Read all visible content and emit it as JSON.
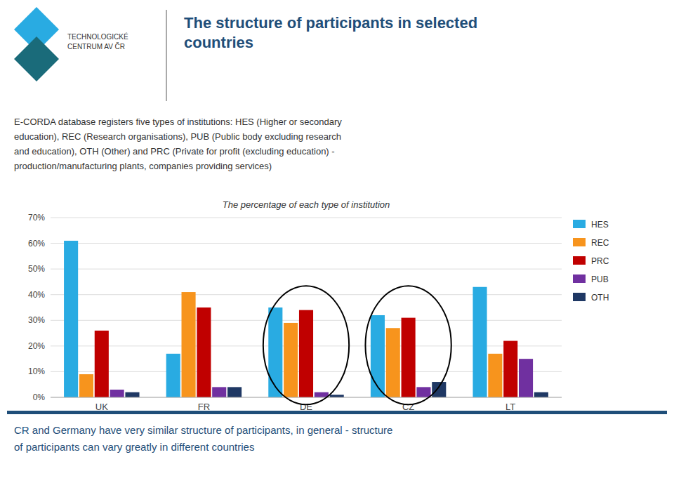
{
  "chart_data": {
    "type": "bar",
    "title": "The structure of participants in selected\ncountries",
    "subtitle": "The percentage of each type of institution",
    "annotations": [
      "TECHNOLOGICKÉ\nCENTRUM AV ČR",
      "E-CORDA database registers five types of institutions: HES (Higher or secondary\neducation), REC (Research organisations), PUB (Public body excluding research\nand education), OTH (Other) and PRC (Private for profit (excluding education) -\nproduction/manufacturing plants, companies providing services)",
      "CR and Germany have very similar structure of participants, in general - structure\nof participants can vary greatly in different countries"
    ],
    "categories": [
      "UK",
      "FR",
      "DE",
      "CZ",
      "LT"
    ],
    "series": [
      {
        "name": "HES",
        "color": "#29ABE2",
        "values": [
          61,
          17,
          35,
          32,
          43
        ]
      },
      {
        "name": "REC",
        "color": "#F7941D",
        "values": [
          9,
          41,
          29,
          27,
          17
        ]
      },
      {
        "name": "PRC",
        "color": "#C00000",
        "values": [
          26,
          35,
          34,
          31,
          22
        ]
      },
      {
        "name": "PUB",
        "color": "#7030A0",
        "values": [
          3,
          4,
          2,
          4,
          15
        ]
      },
      {
        "name": "OTH",
        "color": "#1F3864",
        "values": [
          2,
          4,
          1,
          6,
          2
        ]
      }
    ],
    "ylim": [
      0,
      70
    ],
    "yticks": [
      {
        "value": 0,
        "label": "0%"
      },
      {
        "value": 10,
        "label": "10%"
      },
      {
        "value": 20,
        "label": "20%"
      },
      {
        "value": 30,
        "label": "30%"
      },
      {
        "value": 40,
        "label": "40%"
      },
      {
        "value": 50,
        "label": "50%"
      },
      {
        "value": 60,
        "label": "60%"
      },
      {
        "value": 70,
        "label": "70%"
      }
    ],
    "grid": true,
    "legend": "right"
  }
}
